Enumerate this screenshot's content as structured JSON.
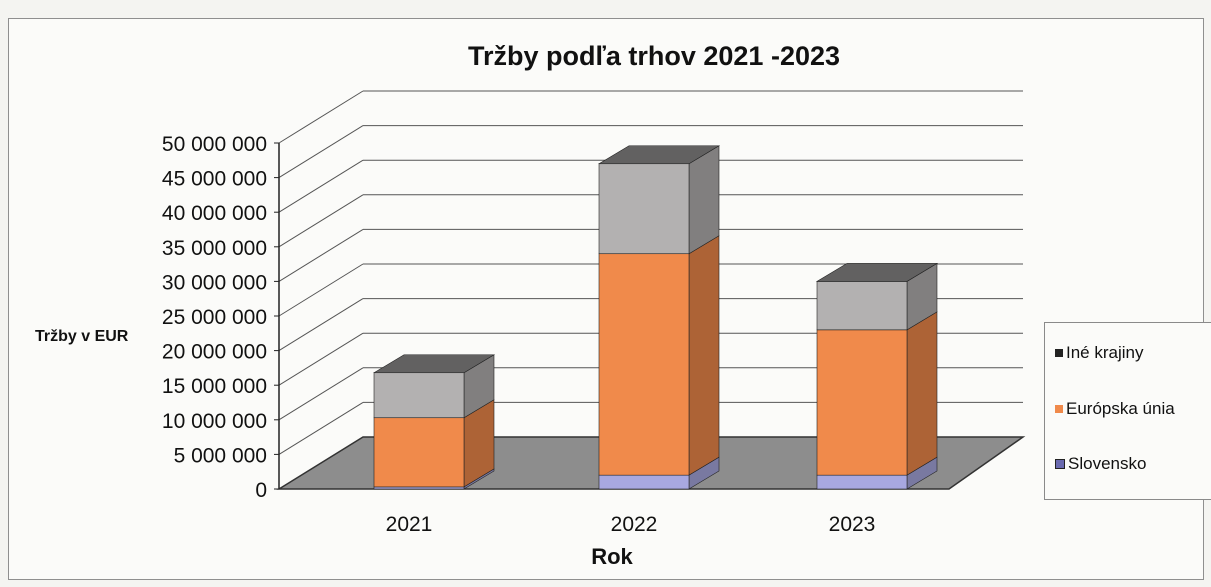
{
  "chart_data": {
    "type": "bar",
    "stacked": true,
    "three_d": true,
    "title": "Tržby podľa trhov 2021 -2023",
    "xlabel": "Rok",
    "ylabel": "Tržby v EUR",
    "categories": [
      "2021",
      "2022",
      "2023"
    ],
    "ylim": [
      0,
      50000000
    ],
    "y_ticks": [
      0,
      5000000,
      10000000,
      15000000,
      20000000,
      25000000,
      30000000,
      35000000,
      40000000,
      45000000,
      50000000
    ],
    "y_tick_labels": [
      "0",
      "5 000 000",
      "10 000 000",
      "15 000 000",
      "20 000 000",
      "25 000 000",
      "30 000 000",
      "35 000 000",
      "40 000 000",
      "45 000 000",
      "50 000 000"
    ],
    "series": [
      {
        "name": "Slovensko",
        "values": [
          300000,
          2000000,
          2000000
        ],
        "color": "#a8a8e0"
      },
      {
        "name": "Európska únia",
        "values": [
          10000000,
          32000000,
          21000000
        ],
        "color": "#f08a4b"
      },
      {
        "name": "Iné krajiny",
        "values": [
          6500000,
          13000000,
          7000000
        ],
        "color": "#b3b1b1"
      }
    ],
    "legend": {
      "position": "right",
      "items": [
        "Iné krajiny",
        "Európska únia",
        "Slovensko"
      ]
    },
    "grid": true
  }
}
